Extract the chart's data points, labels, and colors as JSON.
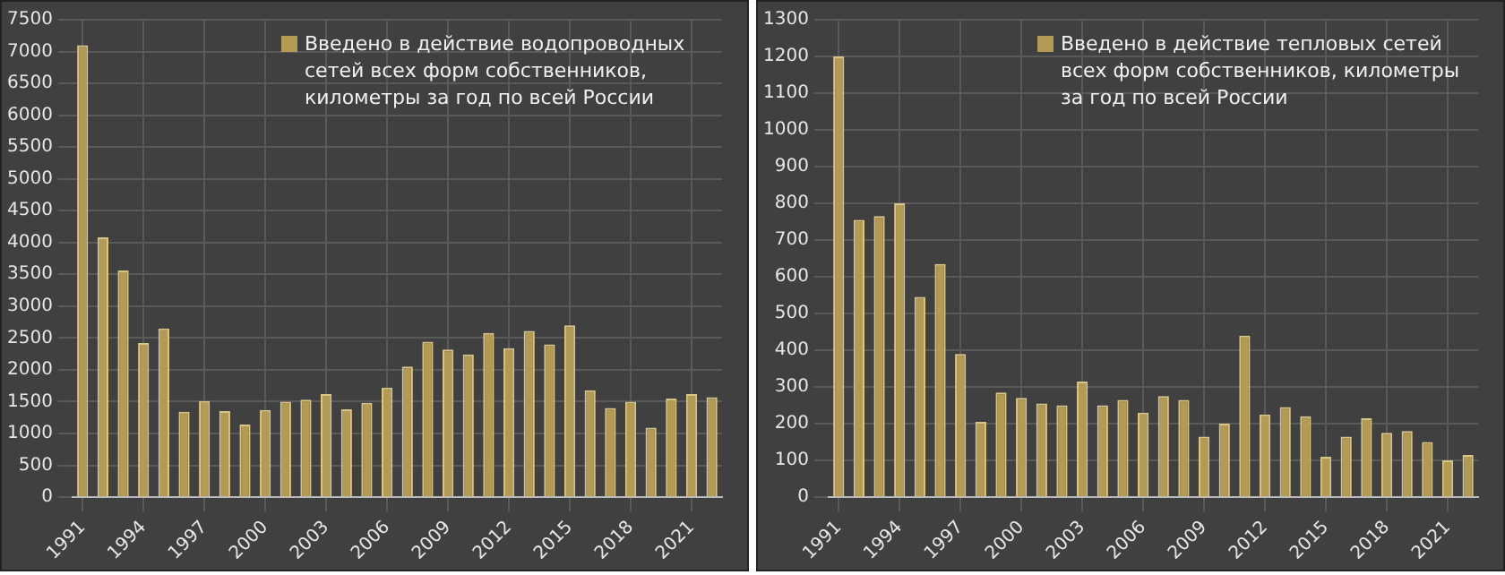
{
  "chart_data": [
    {
      "type": "bar",
      "categories": [
        "1991",
        null,
        null,
        "1994",
        null,
        null,
        "1997",
        null,
        null,
        "2000",
        null,
        null,
        "2003",
        null,
        null,
        "2006",
        null,
        null,
        "2009",
        null,
        null,
        "2012",
        null,
        null,
        "2015",
        null,
        null,
        "2018",
        null,
        null,
        "2021",
        null
      ],
      "series": [
        {
          "name": "Введено в действие водопроводных сетей всех форм собственников, километры за год по всей России",
          "color": "#b39a55",
          "values": [
            7100,
            4080,
            3560,
            2420,
            2650,
            1340,
            1510,
            1350,
            1140,
            1370,
            1500,
            1530,
            1620,
            1380,
            1480,
            1720,
            2050,
            2440,
            2320,
            2240,
            2580,
            2340,
            2610,
            2400,
            2700,
            1680,
            1400,
            1500,
            1090,
            1550,
            1620,
            1570
          ]
        }
      ],
      "ylim": [
        0,
        7500
      ],
      "yticks": [
        0,
        500,
        1000,
        1500,
        2000,
        2500,
        3000,
        3500,
        4000,
        4500,
        5000,
        5500,
        6000,
        6500,
        7000,
        7500
      ],
      "grid": true,
      "legend": "top right"
    },
    {
      "type": "bar",
      "categories": [
        "1991",
        null,
        null,
        "1994",
        null,
        null,
        "1997",
        null,
        null,
        "2000",
        null,
        null,
        "2003",
        null,
        null,
        "2006",
        null,
        null,
        "2009",
        null,
        null,
        "2012",
        null,
        null,
        "2015",
        null,
        null,
        "2018",
        null,
        null,
        "2021",
        null
      ],
      "series": [
        {
          "name": "Введено в действие тепловых сетей всех форм собственников, километры за год по всей России",
          "color": "#b39a55",
          "values": [
            1200,
            755,
            765,
            800,
            545,
            635,
            390,
            205,
            285,
            270,
            255,
            250,
            315,
            250,
            265,
            230,
            275,
            265,
            165,
            200,
            440,
            225,
            245,
            220,
            110,
            165,
            215,
            175,
            180,
            150,
            100,
            115
          ]
        }
      ],
      "ylim": [
        0,
        1300
      ],
      "yticks": [
        0,
        100,
        200,
        300,
        400,
        500,
        600,
        700,
        800,
        900,
        1000,
        1100,
        1200,
        1300
      ],
      "grid": true,
      "legend": "top right"
    }
  ]
}
